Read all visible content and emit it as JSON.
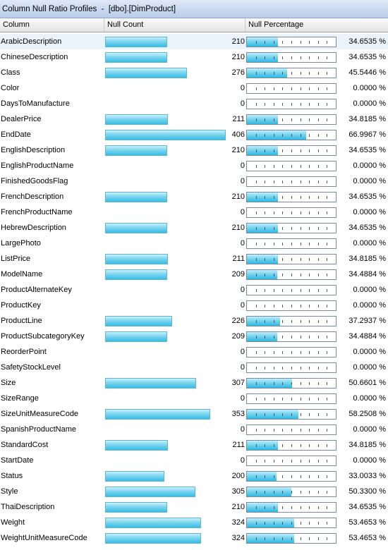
{
  "title": "Column Null Ratio Profiles  -  [dbo].[DimProduct]",
  "headers": {
    "column": "Column",
    "null_count": "Null Count",
    "null_percentage": "Null Percentage"
  },
  "rows": [
    {
      "name": "ArabicDescription",
      "count": "210",
      "pct": "34.6535 %",
      "ratio": 0.346535
    },
    {
      "name": "ChineseDescription",
      "count": "210",
      "pct": "34.6535 %",
      "ratio": 0.346535
    },
    {
      "name": "Class",
      "count": "276",
      "pct": "45.5446 %",
      "ratio": 0.455446
    },
    {
      "name": "Color",
      "count": "0",
      "pct": "0.0000 %",
      "ratio": 0
    },
    {
      "name": "DaysToManufacture",
      "count": "0",
      "pct": "0.0000 %",
      "ratio": 0
    },
    {
      "name": "DealerPrice",
      "count": "211",
      "pct": "34.8185 %",
      "ratio": 0.348185
    },
    {
      "name": "EndDate",
      "count": "406",
      "pct": "66.9967 %",
      "ratio": 0.669967
    },
    {
      "name": "EnglishDescription",
      "count": "210",
      "pct": "34.6535 %",
      "ratio": 0.346535
    },
    {
      "name": "EnglishProductName",
      "count": "0",
      "pct": "0.0000 %",
      "ratio": 0
    },
    {
      "name": "FinishedGoodsFlag",
      "count": "0",
      "pct": "0.0000 %",
      "ratio": 0
    },
    {
      "name": "FrenchDescription",
      "count": "210",
      "pct": "34.6535 %",
      "ratio": 0.346535
    },
    {
      "name": "FrenchProductName",
      "count": "0",
      "pct": "0.0000 %",
      "ratio": 0
    },
    {
      "name": "HebrewDescription",
      "count": "210",
      "pct": "34.6535 %",
      "ratio": 0.346535
    },
    {
      "name": "LargePhoto",
      "count": "0",
      "pct": "0.0000 %",
      "ratio": 0
    },
    {
      "name": "ListPrice",
      "count": "211",
      "pct": "34.8185 %",
      "ratio": 0.348185
    },
    {
      "name": "ModelName",
      "count": "209",
      "pct": "34.4884 %",
      "ratio": 0.344884
    },
    {
      "name": "ProductAlternateKey",
      "count": "0",
      "pct": "0.0000 %",
      "ratio": 0
    },
    {
      "name": "ProductKey",
      "count": "0",
      "pct": "0.0000 %",
      "ratio": 0
    },
    {
      "name": "ProductLine",
      "count": "226",
      "pct": "37.2937 %",
      "ratio": 0.372937
    },
    {
      "name": "ProductSubcategoryKey",
      "count": "209",
      "pct": "34.4884 %",
      "ratio": 0.344884
    },
    {
      "name": "ReorderPoint",
      "count": "0",
      "pct": "0.0000 %",
      "ratio": 0
    },
    {
      "name": "SafetyStockLevel",
      "count": "0",
      "pct": "0.0000 %",
      "ratio": 0
    },
    {
      "name": "Size",
      "count": "307",
      "pct": "50.6601 %",
      "ratio": 0.506601
    },
    {
      "name": "SizeRange",
      "count": "0",
      "pct": "0.0000 %",
      "ratio": 0
    },
    {
      "name": "SizeUnitMeasureCode",
      "count": "353",
      "pct": "58.2508 %",
      "ratio": 0.582508
    },
    {
      "name": "SpanishProductName",
      "count": "0",
      "pct": "0.0000 %",
      "ratio": 0
    },
    {
      "name": "StandardCost",
      "count": "211",
      "pct": "34.8185 %",
      "ratio": 0.348185
    },
    {
      "name": "StartDate",
      "count": "0",
      "pct": "0.0000 %",
      "ratio": 0
    },
    {
      "name": "Status",
      "count": "200",
      "pct": "33.0033 %",
      "ratio": 0.330033
    },
    {
      "name": "Style",
      "count": "305",
      "pct": "50.3300 %",
      "ratio": 0.5033
    },
    {
      "name": "ThaiDescription",
      "count": "210",
      "pct": "34.6535 %",
      "ratio": 0.346535
    },
    {
      "name": "Weight",
      "count": "324",
      "pct": "53.4653 %",
      "ratio": 0.534653
    },
    {
      "name": "WeightUnitMeasureCode",
      "count": "324",
      "pct": "53.4653 %",
      "ratio": 0.534653
    }
  ],
  "colors": {
    "bar": "#37bde4",
    "selected_row": "#eaf3f9",
    "title_bar": "#b9cdea"
  }
}
